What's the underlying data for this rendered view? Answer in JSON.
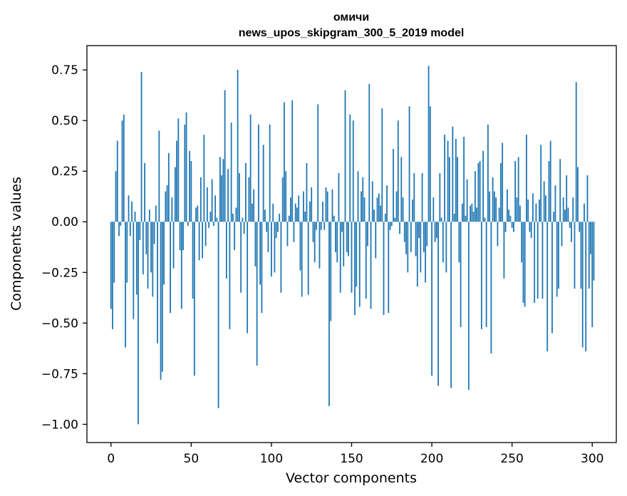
{
  "chart_data": {
    "type": "bar",
    "title": "омичи",
    "subtitle": "news_upos_skipgram_300_5_2019 model",
    "xlabel": "Vector components",
    "ylabel": "Components values",
    "xlim": [
      -15,
      315
    ],
    "ylim": [
      -1.09,
      0.87
    ],
    "xticks": [
      0,
      50,
      100,
      150,
      200,
      250,
      300
    ],
    "xtick_labels": [
      "0",
      "50",
      "100",
      "150",
      "200",
      "250",
      "300"
    ],
    "yticks": [
      -1.0,
      -0.75,
      -0.5,
      -0.25,
      0.0,
      0.25,
      0.5,
      0.75
    ],
    "ytick_labels": [
      "−1.00",
      "−0.75",
      "−0.50",
      "−0.25",
      "0.00",
      "0.25",
      "0.50",
      "0.75"
    ],
    "color": "#1f77b4",
    "x": "0..299 (component index)",
    "values": [
      -0.43,
      -0.53,
      -0.3,
      0.25,
      0.4,
      -0.07,
      -0.02,
      0.5,
      0.53,
      -0.62,
      -0.3,
      0.13,
      -0.07,
      0.1,
      -0.48,
      0.05,
      -0.36,
      -1.0,
      -0.09,
      0.74,
      -0.26,
      0.29,
      -0.16,
      -0.33,
      0.06,
      -0.25,
      -0.37,
      -0.11,
      0.08,
      -0.6,
      0.45,
      -0.78,
      -0.74,
      -0.31,
      0.15,
      0.18,
      0.34,
      -0.45,
      0.12,
      -0.23,
      0.27,
      0.4,
      0.51,
      -0.14,
      -0.43,
      -0.14,
      0.48,
      0.54,
      -0.02,
      0.35,
      0.3,
      -0.38,
      -0.76,
      0.07,
      0.08,
      -0.19,
      0.22,
      -0.18,
      0.43,
      -0.12,
      0.17,
      -0.03,
      0.05,
      0.21,
      -0.02,
      0.13,
      0.02,
      -0.92,
      0.32,
      0.23,
      0.31,
      0.65,
      -0.28,
      0.26,
      -0.53,
      0.49,
      0.04,
      -0.14,
      0.07,
      0.75,
      0.24,
      -0.35,
      0.02,
      -0.06,
      0.29,
      -0.55,
      0.22,
      0.53,
      0.09,
      0.16,
      -0.22,
      -0.71,
      0.48,
      -0.31,
      -0.45,
      0.38,
      0.06,
      -0.05,
      -0.15,
      0.48,
      -0.27,
      0.09,
      -0.25,
      -0.08,
      -0.05,
      0.04,
      -0.35,
      0.22,
      0.59,
      0.25,
      -0.12,
      0.03,
      0.12,
      0.6,
      -0.1,
      0.09,
      0.07,
      0.13,
      -0.24,
      -0.37,
      0.15,
      0.05,
      0.29,
      -0.36,
      0.1,
      0.17,
      -0.1,
      -0.2,
      -0.04,
      0.58,
      -0.23,
      -0.04,
      0.1,
      -0.04,
      0.17,
      0.15,
      -0.91,
      -0.49,
      0.16,
      0.03,
      -0.15,
      -0.2,
      0.24,
      -0.35,
      -0.05,
      -0.22,
      0.65,
      -0.15,
      -0.17,
      0.53,
      -0.35,
      0.5,
      -0.46,
      -0.32,
      0.25,
      -0.42,
      0.15,
      0.22,
      0.12,
      -0.38,
      -0.12,
      0.68,
      -0.43,
      0.2,
      0.06,
      -0.18,
      0.12,
      0.14,
      0.08,
      0.56,
      -0.46,
      0.04,
      0.18,
      -0.45,
      -0.04,
      -0.02,
      0.36,
      0.02,
      0.15,
      0.5,
      -0.06,
      0.32,
      0.12,
      -0.1,
      -0.16,
      -0.25,
      0.57,
      -0.15,
      0.11,
      0.24,
      -0.17,
      -0.32,
      -0.08,
      -0.25,
      0.24,
      -0.15,
      -0.3,
      -0.12,
      0.77,
      0.57,
      -0.76,
      0.12,
      -0.1,
      -0.08,
      -0.81,
      0.24,
      0.02,
      -0.2,
      0.43,
      -0.25,
      0.4,
      0.32,
      -0.82,
      0.47,
      0.04,
      0.41,
      0.32,
      -0.2,
      -0.52,
      0.09,
      0.42,
      0.03,
      0.21,
      -0.83,
      0.08,
      0.09,
      0.05,
      0.25,
      0.07,
      0.29,
      0.3,
      -0.53,
      0.35,
      0.02,
      -0.52,
      0.48,
      0.15,
      -0.65,
      0.22,
      0.15,
      0.12,
      -0.12,
      0.07,
      0.29,
      0.39,
      -0.28,
      -0.05,
      0.16,
      0.06,
      0.03,
      -0.03,
      -0.05,
      0.3,
      0.12,
      0.32,
      0.08,
      -0.2,
      -0.4,
      -0.42,
      0.43,
      0.11,
      -0.05,
      -0.08,
      0.14,
      -0.4,
      0.09,
      -0.38,
      0.11,
      0.38,
      -0.38,
      0.2,
      0.13,
      -0.64,
      0.3,
      0.4,
      -0.55,
      0.05,
      0.18,
      -0.37,
      -0.33,
      0.31,
      -0.12,
      0.12,
      0.06,
      0.23,
      0.07,
      -0.03,
      -0.1,
      0.12,
      -0.33,
      0.69,
      0.27,
      -0.05,
      -0.33,
      -0.62,
      0.09,
      -0.64,
      0.23,
      -0.33,
      -0.16,
      -0.52,
      -0.29
    ]
  }
}
